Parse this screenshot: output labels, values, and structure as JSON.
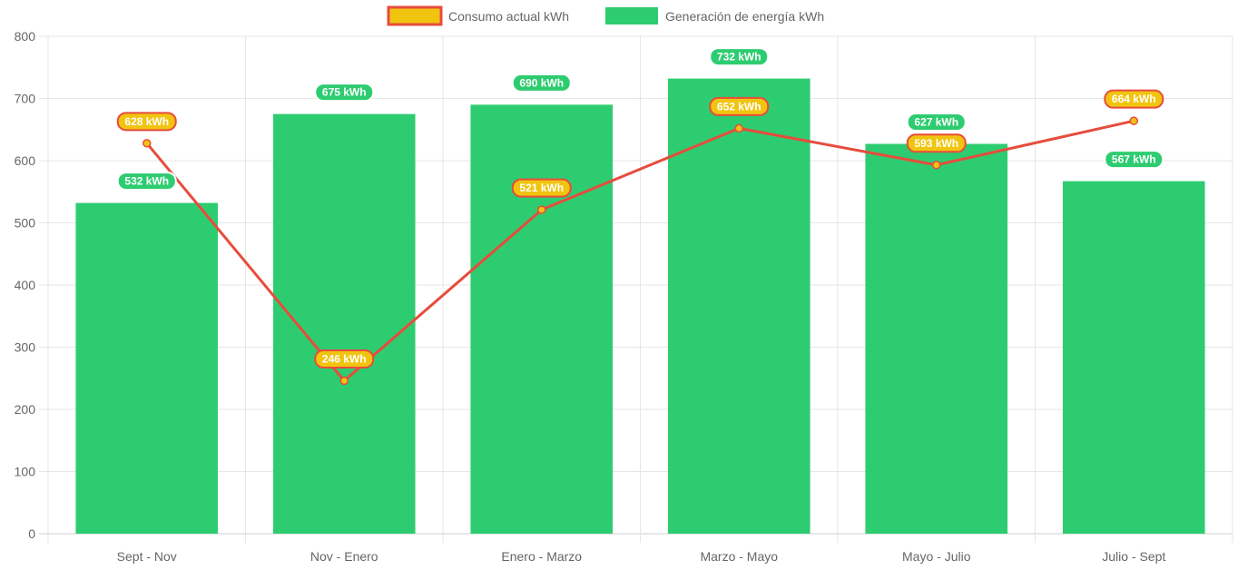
{
  "chart_data": {
    "type": "bar",
    "categories": [
      "Sept - Nov",
      "Nov - Enero",
      "Enero - Marzo",
      "Marzo - Mayo",
      "Mayo - Julio",
      "Julio - Sept"
    ],
    "series": [
      {
        "name": "Consumo actual kWh",
        "type": "line",
        "values": [
          628,
          246,
          521,
          652,
          593,
          664
        ],
        "labels": [
          "628 kWh",
          "246 kWh",
          "521 kWh",
          "652 kWh",
          "593 kWh",
          "664 kWh"
        ],
        "color": "#e74c3c",
        "fill": "#f1c40f"
      },
      {
        "name": "Generación de energía kWh",
        "type": "bar",
        "values": [
          532,
          675,
          690,
          732,
          627,
          567
        ],
        "labels": [
          "532 kWh",
          "675 kWh",
          "690 kWh",
          "732 kWh",
          "627 kWh",
          "567 kWh"
        ],
        "color": "#2ecc71"
      }
    ],
    "y_ticks": [
      "0",
      "100",
      "200",
      "300",
      "400",
      "500",
      "600",
      "700",
      "800"
    ],
    "ylim": [
      0,
      800
    ],
    "grid": true,
    "legend_position": "top"
  }
}
